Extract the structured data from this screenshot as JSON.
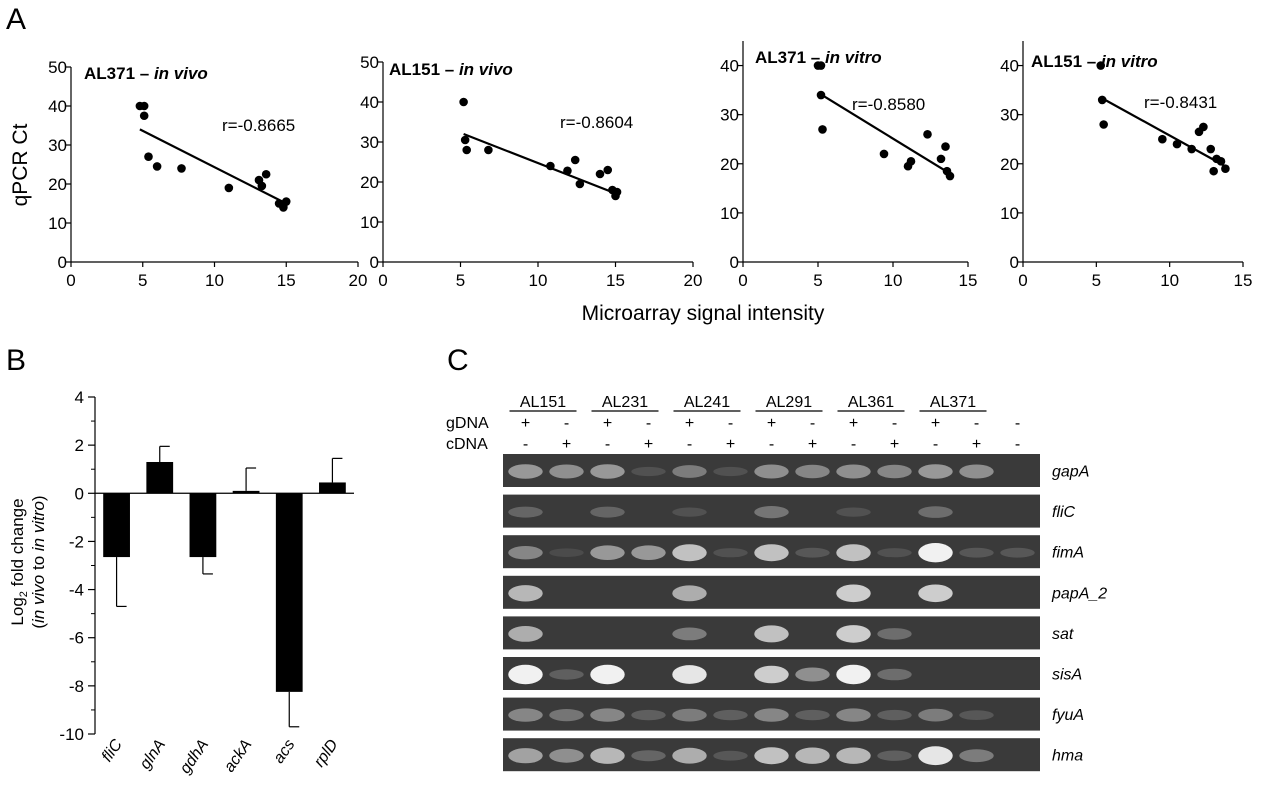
{
  "panel_labels": {
    "a": "A",
    "b": "B",
    "c": "C"
  },
  "panel_a": {
    "ylabel": "qPCR Ct",
    "xlabel": "Microarray signal intensity"
  },
  "chart_data": [
    {
      "type": "scatter",
      "title_strain": "AL371 – ",
      "title_cond": "in vivo",
      "r_label": "r=-0.8665",
      "xlim": [
        0,
        20
      ],
      "ylim": [
        0,
        50
      ],
      "xticks": [
        0,
        5,
        10,
        15,
        20
      ],
      "yticks": [
        0,
        10,
        20,
        30,
        40,
        50
      ],
      "points": [
        [
          4.8,
          40
        ],
        [
          5.1,
          40
        ],
        [
          5.1,
          37.5
        ],
        [
          5.4,
          27
        ],
        [
          6.0,
          24.5
        ],
        [
          7.7,
          24
        ],
        [
          11.0,
          19
        ],
        [
          13.1,
          21
        ],
        [
          13.3,
          19.5
        ],
        [
          13.6,
          22.5
        ],
        [
          14.5,
          15
        ],
        [
          14.8,
          14
        ],
        [
          15.0,
          15.5
        ]
      ],
      "fit": [
        [
          4.8,
          34
        ],
        [
          15.0,
          15
        ]
      ]
    },
    {
      "type": "scatter",
      "title_strain": "AL151 – ",
      "title_cond": "in vivo",
      "r_label": "r=-0.8604",
      "xlim": [
        0,
        20
      ],
      "ylim": [
        0,
        50
      ],
      "xticks": [
        0,
        5,
        10,
        15,
        20
      ],
      "yticks": [
        0,
        10,
        20,
        30,
        40,
        50
      ],
      "points": [
        [
          5.2,
          40
        ],
        [
          5.3,
          30.5
        ],
        [
          5.4,
          28
        ],
        [
          6.8,
          28
        ],
        [
          10.8,
          24
        ],
        [
          11.9,
          22.8
        ],
        [
          12.4,
          25.5
        ],
        [
          12.7,
          19.5
        ],
        [
          14.0,
          22
        ],
        [
          14.5,
          23
        ],
        [
          14.8,
          18
        ],
        [
          15.0,
          16.5
        ],
        [
          15.1,
          17.5
        ]
      ],
      "fit": [
        [
          5.2,
          32
        ],
        [
          15.1,
          17
        ]
      ]
    },
    {
      "type": "scatter",
      "title_strain": "AL371 – ",
      "title_cond": "in vitro",
      "r_label": "r=-0.8580",
      "xlim": [
        0,
        15
      ],
      "ylim": [
        0,
        45
      ],
      "xticks": [
        0,
        5,
        10,
        15
      ],
      "yticks": [
        0,
        10,
        20,
        30,
        40
      ],
      "points": [
        [
          5.0,
          40
        ],
        [
          5.2,
          40
        ],
        [
          5.2,
          34
        ],
        [
          5.3,
          27
        ],
        [
          9.4,
          22
        ],
        [
          11.0,
          19.5
        ],
        [
          11.2,
          20.5
        ],
        [
          12.3,
          26
        ],
        [
          13.2,
          21
        ],
        [
          13.5,
          23.5
        ],
        [
          13.6,
          18.5
        ],
        [
          13.8,
          17.5
        ]
      ],
      "fit": [
        [
          5.0,
          34.5
        ],
        [
          13.8,
          18
        ]
      ]
    },
    {
      "type": "scatter",
      "title_strain": "AL151 – ",
      "title_cond": "in vitro",
      "r_label": "r=-0.8431",
      "xlim": [
        0,
        15
      ],
      "ylim": [
        0,
        45
      ],
      "xticks": [
        0,
        5,
        10,
        15
      ],
      "yticks": [
        0,
        10,
        20,
        30,
        40
      ],
      "points": [
        [
          5.3,
          40
        ],
        [
          5.4,
          33
        ],
        [
          5.5,
          28
        ],
        [
          9.5,
          25
        ],
        [
          10.5,
          24
        ],
        [
          11.5,
          23
        ],
        [
          12.0,
          26.5
        ],
        [
          12.3,
          27.5
        ],
        [
          12.8,
          23
        ],
        [
          13.0,
          18.5
        ],
        [
          13.2,
          21
        ],
        [
          13.5,
          20.5
        ],
        [
          13.8,
          19
        ]
      ],
      "fit": [
        [
          5.3,
          33.5
        ],
        [
          13.8,
          19.5
        ]
      ]
    },
    {
      "type": "bar",
      "ylabel_main": "Log",
      "ylabel_sub": "2",
      "ylabel_rest": " fold change",
      "ylabel2_open": "(",
      "ylabel2_it1": "in vivo",
      "ylabel2_mid": " to ",
      "ylabel2_it2": "in vitro",
      "ylabel2_close": ")",
      "categories": [
        "fliC",
        "glnA",
        "gdhA",
        "ackA",
        "acs",
        "rplD"
      ],
      "values": [
        -2.65,
        1.3,
        -2.65,
        0.1,
        -8.25,
        0.45
      ],
      "errors": [
        2.05,
        0.65,
        0.7,
        0.95,
        1.45,
        1.0
      ],
      "ylim": [
        -10,
        4
      ],
      "yticks": [
        4,
        2,
        0,
        -2,
        -4,
        -6,
        -8,
        -10
      ]
    }
  ],
  "gel": {
    "strains": [
      "AL151",
      "AL231",
      "AL241",
      "AL291",
      "AL361",
      "AL371"
    ],
    "row_gdna": "gDNA",
    "row_cdna": "cDNA",
    "gdna_marks": [
      "+",
      "-",
      "+",
      "-",
      "+",
      "-",
      "+",
      "-",
      "+",
      "-",
      "+",
      "-",
      "-"
    ],
    "cdna_marks": [
      "-",
      "+",
      "-",
      "+",
      "-",
      "+",
      "-",
      "+",
      "-",
      "+",
      "-",
      "+",
      "-"
    ],
    "genes": [
      "gapA",
      "fliC",
      "fimA",
      "papA_2",
      "sat",
      "sisA",
      "fyuA",
      "hma"
    ],
    "band_intensity": [
      [
        0.55,
        0.5,
        0.55,
        0.1,
        0.4,
        0.1,
        0.5,
        0.45,
        0.5,
        0.45,
        0.55,
        0.5,
        0.0
      ],
      [
        0.25,
        0.0,
        0.25,
        0.0,
        0.1,
        0.0,
        0.35,
        0.0,
        0.1,
        0.0,
        0.3,
        0.0,
        0.0
      ],
      [
        0.45,
        0.05,
        0.55,
        0.55,
        0.75,
        0.1,
        0.75,
        0.15,
        0.75,
        0.1,
        0.95,
        0.15,
        0.15
      ],
      [
        0.7,
        0.0,
        0.0,
        0.0,
        0.65,
        0.0,
        0.0,
        0.0,
        0.8,
        0.0,
        0.8,
        0.0,
        0.0
      ],
      [
        0.65,
        0.0,
        0.0,
        0.0,
        0.4,
        0.0,
        0.75,
        0.0,
        0.8,
        0.3,
        0.0,
        0.0,
        0.0
      ],
      [
        0.95,
        0.2,
        0.95,
        0.0,
        0.9,
        0.0,
        0.8,
        0.5,
        0.95,
        0.3,
        0.0,
        0.0,
        0.0
      ],
      [
        0.45,
        0.35,
        0.45,
        0.2,
        0.4,
        0.2,
        0.45,
        0.2,
        0.45,
        0.2,
        0.4,
        0.15,
        0.0
      ],
      [
        0.6,
        0.5,
        0.7,
        0.25,
        0.65,
        0.15,
        0.75,
        0.7,
        0.7,
        0.2,
        0.9,
        0.4,
        0.0
      ]
    ]
  }
}
